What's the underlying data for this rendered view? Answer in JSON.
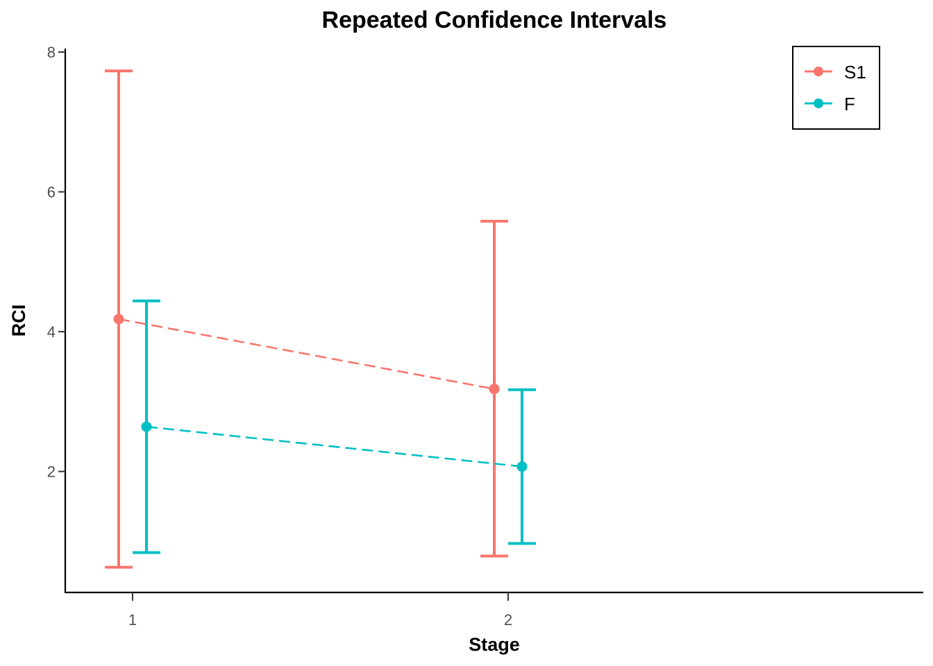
{
  "chart_data": {
    "type": "line",
    "title": "Repeated Confidence Intervals",
    "xlabel": "Stage",
    "ylabel": "RCI",
    "x_ticks": [
      "1",
      "2"
    ],
    "y_ticks": [
      "2",
      "4",
      "6",
      "8"
    ],
    "ylim": [
      0.2,
      8.1
    ],
    "grid": false,
    "legend_position": "top-right",
    "line_style": "dashed",
    "series": [
      {
        "name": "S1",
        "color": "#F8766D",
        "points": [
          {
            "stage": 1,
            "estimate": 4.18,
            "lower": 0.63,
            "upper": 7.73
          },
          {
            "stage": 2,
            "estimate": 3.18,
            "lower": 0.79,
            "upper": 5.58
          }
        ]
      },
      {
        "name": "F",
        "color": "#00BFC4",
        "points": [
          {
            "stage": 1,
            "estimate": 2.64,
            "lower": 0.84,
            "upper": 4.44
          },
          {
            "stage": 2,
            "estimate": 2.07,
            "lower": 0.97,
            "upper": 3.17
          }
        ]
      }
    ]
  }
}
